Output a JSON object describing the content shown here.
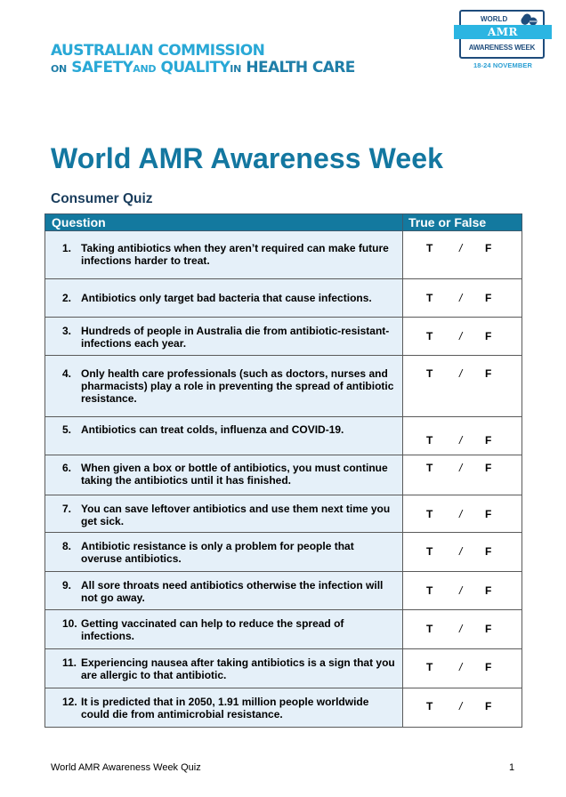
{
  "header": {
    "organization": {
      "line1": "AUSTRALIAN COMMISSION",
      "line2_parts": [
        "ON",
        "SAFETY",
        "AND",
        "QUALITY",
        "IN",
        "HEALTH CARE"
      ]
    },
    "event_logo": {
      "top": "WORLD",
      "band": "AMR",
      "bottom": "AWARENESS WEEK",
      "dates": "18-24 NOVEMBER",
      "icon": "pills-icon"
    }
  },
  "document": {
    "title": "World AMR Awareness Week",
    "subtitle": "Consumer Quiz"
  },
  "table": {
    "columns": [
      "Question",
      "True or False"
    ],
    "answer_labels": {
      "true": "T",
      "separator": "/",
      "false": "F"
    },
    "rows": [
      {
        "num": "1.",
        "question": "Taking antibiotics when they aren’t required can make future infections harder to treat."
      },
      {
        "num": "2.",
        "question": "Antibiotics only target bad bacteria that cause infections."
      },
      {
        "num": "3.",
        "question": "Hundreds of people in Australia die from antibiotic-resistant-infections each year."
      },
      {
        "num": "4.",
        "question": "Only health care professionals (such as doctors, nurses and pharmacists) play a role in preventing the spread of antibiotic resistance."
      },
      {
        "num": "5.",
        "question": "Antibiotics can treat colds, influenza and COVID-19."
      },
      {
        "num": "6.",
        "question": "When given a box or bottle of antibiotics, you must continue taking the antibiotics until it has finished."
      },
      {
        "num": "7.",
        "question": "You can save leftover antibiotics and use them next time you get sick."
      },
      {
        "num": "8.",
        "question": "Antibiotic resistance is only a problem for people that overuse antibiotics."
      },
      {
        "num": "9.",
        "question": "All sore throats need antibiotics otherwise the infection will not go away."
      },
      {
        "num": "10.",
        "question": "Getting vaccinated can help to reduce the spread of infections."
      },
      {
        "num": "11.",
        "question": "Experiencing nausea after taking antibiotics is a sign that you are allergic to that antibiotic."
      },
      {
        "num": "12.",
        "question": "It is predicted that in 2050, 1.91 million people worldwide could die from antimicrobial resistance."
      }
    ]
  },
  "footer": {
    "left": "World AMR Awareness Week Quiz",
    "page_number": "1"
  },
  "colors": {
    "title_blue": "#1377a0",
    "header_bg": "#13799f",
    "question_cell_bg": "#e5f0f9",
    "logo_cyan": "#2bb5e2",
    "logo_navy": "#1e4c7c"
  }
}
